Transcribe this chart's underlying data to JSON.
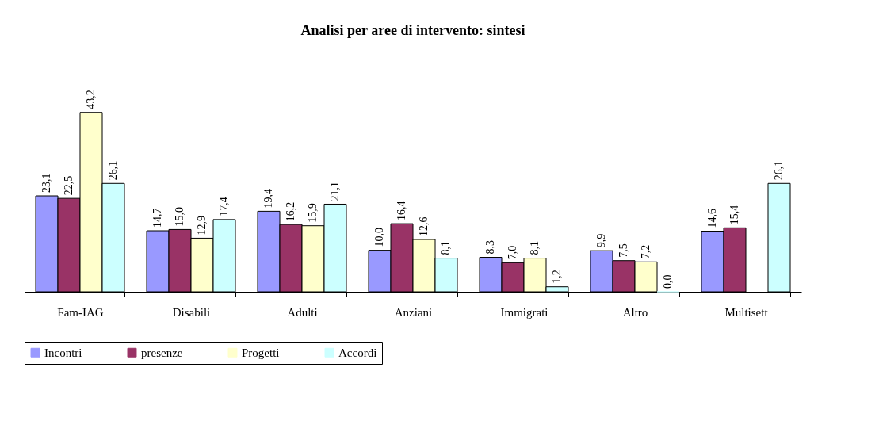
{
  "chart_data": {
    "type": "bar",
    "title": "Analisi per aree di intervento: sintesi",
    "categories": [
      "Fam-IAG",
      "Disabili",
      "Adulti",
      "Anziani",
      "Immigrati",
      "Altro",
      "Multisett"
    ],
    "series": [
      {
        "name": "Incontri",
        "color": "#9999ff",
        "values": [
          23.1,
          14.7,
          19.4,
          10.0,
          8.3,
          9.9,
          14.6
        ],
        "value_labels": [
          "23,1",
          "14,7",
          "19,4",
          "10,0",
          "8,3",
          "9,9",
          "14,6"
        ]
      },
      {
        "name": "presenze",
        "color": "#993366",
        "values": [
          22.5,
          15.0,
          16.2,
          16.4,
          7.0,
          7.5,
          15.4
        ],
        "value_labels": [
          "22,5",
          "15,0",
          "16,2",
          "16,4",
          "7,0",
          "7,5",
          "15,4"
        ]
      },
      {
        "name": "Progetti",
        "color": "#ffffcc",
        "values": [
          43.2,
          12.9,
          15.9,
          12.6,
          8.1,
          7.2,
          null
        ],
        "value_labels": [
          "43,2",
          "12,9",
          "15,9",
          "12,6",
          "8,1",
          "7,2",
          null
        ]
      },
      {
        "name": "Accordi",
        "color": "#ccffff",
        "values": [
          26.1,
          17.4,
          21.1,
          8.1,
          1.2,
          0.0,
          26.1
        ],
        "value_labels": [
          "26,1",
          "17,4",
          "21,1",
          "8,1",
          "1,2",
          "0,0",
          "26,1"
        ]
      }
    ],
    "legend": "bottom"
  }
}
